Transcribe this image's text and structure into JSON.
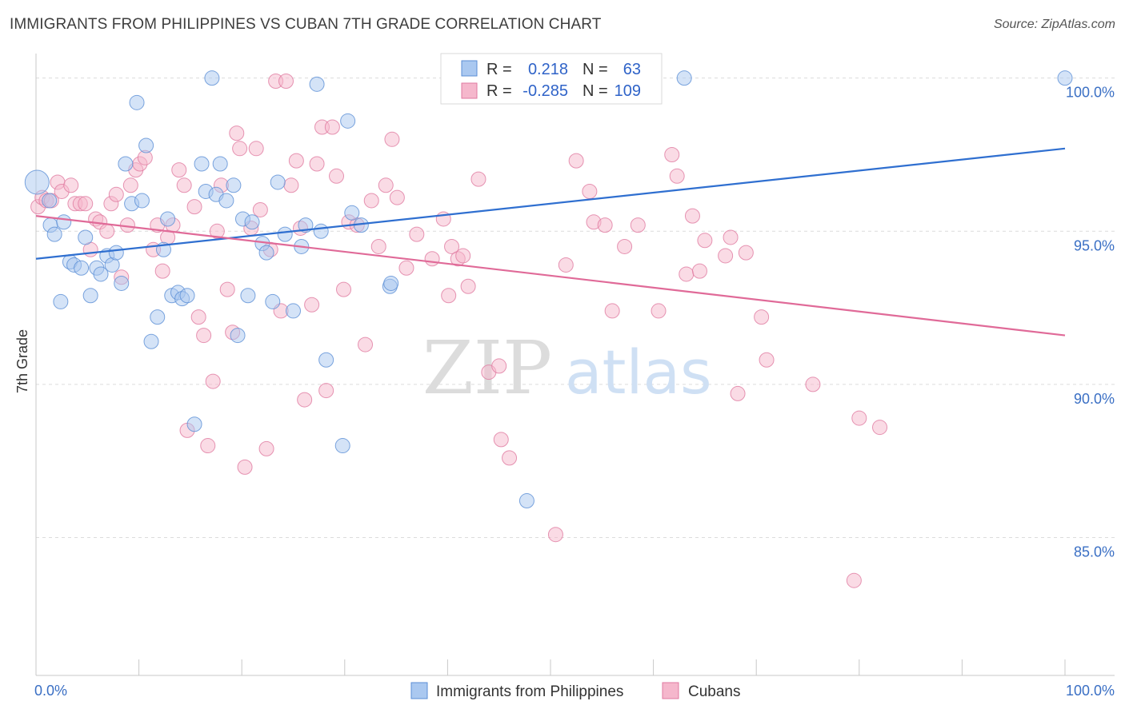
{
  "header": {
    "title": "IMMIGRANTS FROM PHILIPPINES VS CUBAN 7TH GRADE CORRELATION CHART",
    "source": "Source: ZipAtlas.com"
  },
  "watermark": {
    "zip": "ZIP",
    "atlas": "atlas"
  },
  "legend_box": {
    "rows": [
      {
        "r_label": "R =",
        "r_value": "0.218",
        "n_label": "N =",
        "n_value": "63"
      },
      {
        "r_label": "R =",
        "r_value": "-0.285",
        "n_label": "N =",
        "n_value": "109"
      }
    ]
  },
  "colors": {
    "blue_fill": "#aac8f0",
    "blue_stroke": "#5b8ed6",
    "blue_line": "#2f6fd0",
    "pink_fill": "#f5b7cc",
    "pink_stroke": "#e07aa0",
    "pink_line": "#e06a98",
    "grid": "#dcdcdc",
    "tick_label": "#3a6fc4"
  },
  "chart_data": {
    "type": "scatter",
    "title": "IMMIGRANTS FROM PHILIPPINES VS CUBAN 7TH GRADE CORRELATION CHART",
    "xlabel": "",
    "ylabel": "7th Grade",
    "xlim": [
      0,
      100
    ],
    "ylim": [
      80.5,
      100.8
    ],
    "x_tick_labels": [
      "0.0%",
      "100.0%"
    ],
    "y_ticks": [
      85,
      90,
      95,
      100
    ],
    "y_tick_labels": [
      "85.0%",
      "90.0%",
      "95.0%",
      "100.0%"
    ],
    "grid": true,
    "legend_position": "bottom",
    "series": [
      {
        "name": "Immigrants from Philippines",
        "color": "#5b8ed6",
        "trend": {
          "x": [
            0,
            100
          ],
          "y": [
            94.1,
            97.7
          ]
        },
        "points": [
          [
            0.1,
            96.6
          ],
          [
            1.3,
            96.0
          ],
          [
            1.4,
            95.2
          ],
          [
            1.8,
            94.9
          ],
          [
            2.4,
            92.7
          ],
          [
            2.7,
            95.3
          ],
          [
            3.3,
            94.0
          ],
          [
            3.7,
            93.9
          ],
          [
            4.4,
            93.8
          ],
          [
            4.8,
            94.8
          ],
          [
            5.3,
            92.9
          ],
          [
            5.9,
            93.8
          ],
          [
            6.3,
            93.6
          ],
          [
            6.9,
            94.2
          ],
          [
            7.4,
            93.9
          ],
          [
            7.8,
            94.3
          ],
          [
            8.3,
            93.3
          ],
          [
            8.7,
            97.2
          ],
          [
            9.3,
            95.9
          ],
          [
            9.8,
            99.2
          ],
          [
            10.3,
            96.0
          ],
          [
            10.7,
            97.8
          ],
          [
            11.2,
            91.4
          ],
          [
            11.8,
            92.2
          ],
          [
            12.4,
            94.4
          ],
          [
            12.8,
            95.4
          ],
          [
            13.2,
            92.9
          ],
          [
            13.8,
            93.0
          ],
          [
            14.2,
            92.8
          ],
          [
            14.7,
            92.9
          ],
          [
            15.4,
            88.7
          ],
          [
            16.1,
            97.2
          ],
          [
            16.5,
            96.3
          ],
          [
            17.1,
            100.0
          ],
          [
            17.5,
            96.2
          ],
          [
            17.9,
            97.2
          ],
          [
            18.5,
            96.0
          ],
          [
            19.2,
            96.5
          ],
          [
            19.6,
            91.6
          ],
          [
            20.1,
            95.4
          ],
          [
            20.6,
            92.9
          ],
          [
            21.0,
            95.3
          ],
          [
            22.0,
            94.6
          ],
          [
            22.4,
            94.3
          ],
          [
            23.0,
            92.7
          ],
          [
            23.5,
            96.6
          ],
          [
            24.2,
            94.9
          ],
          [
            25.0,
            92.4
          ],
          [
            25.8,
            94.5
          ],
          [
            26.2,
            95.2
          ],
          [
            27.3,
            99.8
          ],
          [
            27.7,
            95.0
          ],
          [
            28.2,
            90.8
          ],
          [
            29.8,
            88.0
          ],
          [
            30.3,
            98.6
          ],
          [
            30.7,
            95.6
          ],
          [
            31.6,
            95.2
          ],
          [
            34.4,
            93.2
          ],
          [
            34.5,
            93.3
          ],
          [
            47.7,
            86.2
          ],
          [
            60.0,
            100.0
          ],
          [
            63.0,
            100.0
          ],
          [
            100.0,
            100.0
          ]
        ]
      },
      {
        "name": "Cubans",
        "color": "#e07aa0",
        "trend": {
          "x": [
            0,
            100
          ],
          "y": [
            95.5,
            91.6
          ]
        },
        "points": [
          [
            0.2,
            95.8
          ],
          [
            0.6,
            96.1
          ],
          [
            1.0,
            96.0
          ],
          [
            1.5,
            96.0
          ],
          [
            2.1,
            96.6
          ],
          [
            2.5,
            96.3
          ],
          [
            3.4,
            96.5
          ],
          [
            3.8,
            95.9
          ],
          [
            4.3,
            95.9
          ],
          [
            4.8,
            95.9
          ],
          [
            5.3,
            94.4
          ],
          [
            5.8,
            95.4
          ],
          [
            6.2,
            95.3
          ],
          [
            6.9,
            95.0
          ],
          [
            7.3,
            95.9
          ],
          [
            7.8,
            96.2
          ],
          [
            8.3,
            93.5
          ],
          [
            8.9,
            95.2
          ],
          [
            9.2,
            96.5
          ],
          [
            9.7,
            97.0
          ],
          [
            10.1,
            97.2
          ],
          [
            10.6,
            97.4
          ],
          [
            11.4,
            94.4
          ],
          [
            11.8,
            95.2
          ],
          [
            12.3,
            93.7
          ],
          [
            12.8,
            94.8
          ],
          [
            13.3,
            95.2
          ],
          [
            13.9,
            97.0
          ],
          [
            14.4,
            96.5
          ],
          [
            14.7,
            88.5
          ],
          [
            15.4,
            95.8
          ],
          [
            15.8,
            92.2
          ],
          [
            16.3,
            91.6
          ],
          [
            16.7,
            88.0
          ],
          [
            17.2,
            90.1
          ],
          [
            17.6,
            95.0
          ],
          [
            18.0,
            96.5
          ],
          [
            18.6,
            93.1
          ],
          [
            19.1,
            91.7
          ],
          [
            19.5,
            98.2
          ],
          [
            19.8,
            97.7
          ],
          [
            20.3,
            87.3
          ],
          [
            20.9,
            95.1
          ],
          [
            21.4,
            97.7
          ],
          [
            21.8,
            95.7
          ],
          [
            22.4,
            87.9
          ],
          [
            22.8,
            94.4
          ],
          [
            23.3,
            99.9
          ],
          [
            23.8,
            92.4
          ],
          [
            24.3,
            99.9
          ],
          [
            24.8,
            96.5
          ],
          [
            25.3,
            97.3
          ],
          [
            25.7,
            95.1
          ],
          [
            26.1,
            89.5
          ],
          [
            26.8,
            92.6
          ],
          [
            27.3,
            97.2
          ],
          [
            27.8,
            98.4
          ],
          [
            28.2,
            89.8
          ],
          [
            28.8,
            98.4
          ],
          [
            29.2,
            96.8
          ],
          [
            29.9,
            93.1
          ],
          [
            30.4,
            95.3
          ],
          [
            31.2,
            95.2
          ],
          [
            32.0,
            91.3
          ],
          [
            32.6,
            96.0
          ],
          [
            33.3,
            94.5
          ],
          [
            34.0,
            96.5
          ],
          [
            34.6,
            98.0
          ],
          [
            35.1,
            96.1
          ],
          [
            36.0,
            93.8
          ],
          [
            37.0,
            94.9
          ],
          [
            38.5,
            94.1
          ],
          [
            39.6,
            95.4
          ],
          [
            40.1,
            92.9
          ],
          [
            40.4,
            94.5
          ],
          [
            41.0,
            94.1
          ],
          [
            41.5,
            94.2
          ],
          [
            42.0,
            93.2
          ],
          [
            43.0,
            96.7
          ],
          [
            44.0,
            90.4
          ],
          [
            45.0,
            90.6
          ],
          [
            45.2,
            88.2
          ],
          [
            46.0,
            87.6
          ],
          [
            50.5,
            85.1
          ],
          [
            51.5,
            93.9
          ],
          [
            52.5,
            97.3
          ],
          [
            53.8,
            96.3
          ],
          [
            54.2,
            95.3
          ],
          [
            55.3,
            95.2
          ],
          [
            56.0,
            92.4
          ],
          [
            57.2,
            94.5
          ],
          [
            58.5,
            95.2
          ],
          [
            60.5,
            92.4
          ],
          [
            61.8,
            97.5
          ],
          [
            62.3,
            96.8
          ],
          [
            63.2,
            93.6
          ],
          [
            63.8,
            95.5
          ],
          [
            64.5,
            93.7
          ],
          [
            65.0,
            94.7
          ],
          [
            67.0,
            94.2
          ],
          [
            67.5,
            94.8
          ],
          [
            68.2,
            89.7
          ],
          [
            69.0,
            94.3
          ],
          [
            70.5,
            92.2
          ],
          [
            71.0,
            90.8
          ],
          [
            75.5,
            90.0
          ],
          [
            80.0,
            88.9
          ],
          [
            82.0,
            88.6
          ],
          [
            79.5,
            83.6
          ]
        ]
      }
    ]
  },
  "bottom_legend": {
    "items": [
      {
        "label": "Immigrants from Philippines"
      },
      {
        "label": "Cubans"
      }
    ]
  }
}
